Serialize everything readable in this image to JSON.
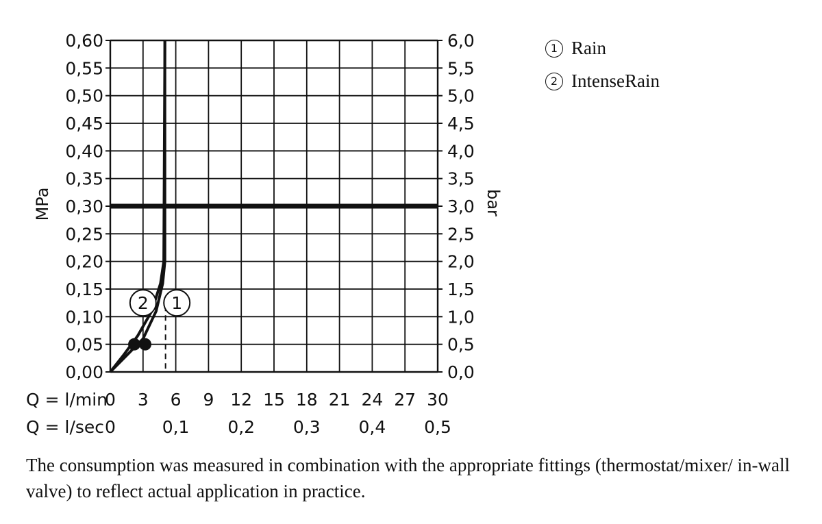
{
  "chart_data": {
    "type": "line",
    "y_left_label": "MPa",
    "y_right_label": "bar",
    "y_left_ticks": [
      "0,00",
      "0,05",
      "0,10",
      "0,15",
      "0,20",
      "0,25",
      "0,30",
      "0,35",
      "0,40",
      "0,45",
      "0,50",
      "0,55",
      "0,60"
    ],
    "y_right_ticks": [
      "0,0",
      "0,5",
      "1,0",
      "1,5",
      "2,0",
      "2,5",
      "3,0",
      "3,5",
      "4,0",
      "4,5",
      "5,0",
      "5,5",
      "6,0"
    ],
    "ylim_mpa": [
      0,
      0.6
    ],
    "x_lmin_label": "Q = l/min",
    "x_lmin_ticks": [
      "0",
      "3",
      "6",
      "9",
      "12",
      "15",
      "18",
      "21",
      "24",
      "27",
      "30"
    ],
    "x_lsec_label": "Q = l/sec",
    "x_lsec_ticks": [
      "0",
      "0,1",
      "0,2",
      "0,3",
      "0,4",
      "0,5"
    ],
    "xlim_lmin": [
      0,
      30
    ],
    "grid": true,
    "reference_pressure_mpa": 0.3,
    "series": [
      {
        "id": "1",
        "name": "Rain",
        "x": [
          0,
          1.5,
          3.0,
          4.2,
          4.8,
          5.0,
          5.0
        ],
        "y": [
          0,
          0.03,
          0.06,
          0.11,
          0.16,
          0.2,
          0.6
        ],
        "marker": {
          "x": 3.2,
          "y": 0.05
        },
        "label_at": {
          "x": 6.1,
          "y": 0.125
        }
      },
      {
        "id": "2",
        "name": "IntenseRain",
        "x": [
          0,
          1.2,
          2.5,
          3.8,
          4.6,
          4.9,
          5.0
        ],
        "y": [
          0,
          0.03,
          0.065,
          0.11,
          0.16,
          0.2,
          0.6
        ],
        "marker": {
          "x": 2.2,
          "y": 0.05
        },
        "label_at": {
          "x": 3.0,
          "y": 0.125
        }
      }
    ],
    "dashed_marker_x": 5.0
  },
  "legend": [
    {
      "num": "1",
      "label": "Rain"
    },
    {
      "num": "2",
      "label": "IntenseRain"
    }
  ],
  "note": "The consumption was measured in combination with the appropriate fittings (thermostat/mixer/ in-wall valve) to reflect actual application in practice."
}
